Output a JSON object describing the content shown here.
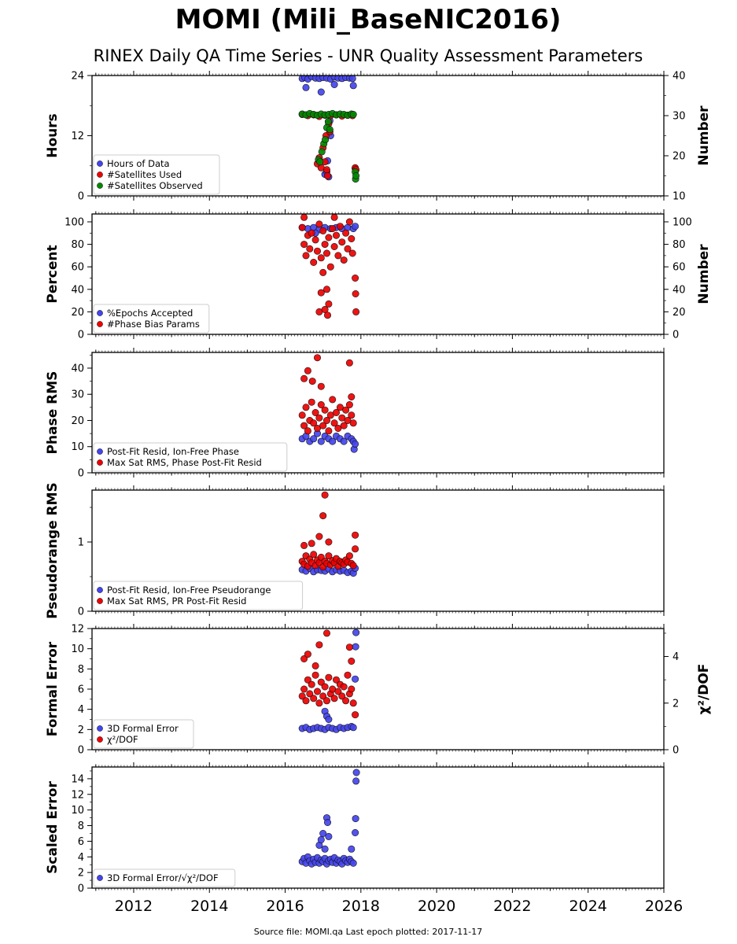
{
  "title": "MOMI (Mili_BaseNIC2016)",
  "subtitle": "RINEX Daily QA Time Series - UNR Quality Assessment Parameters",
  "footer": "Source file: MOMI.qa Last epoch plotted: 2017-11-17",
  "colors": {
    "blue": "#4444ee",
    "red": "#ee0000",
    "green": "#008800"
  },
  "chart_data": [
    {
      "type": "scatter",
      "ylabel": "Hours",
      "ylabel_right": "Number",
      "xlim": [
        2010.9,
        2026.0
      ],
      "ylim": [
        0,
        24
      ],
      "ylim_right": [
        10,
        40
      ],
      "yticks": [
        0,
        12,
        24
      ],
      "yticks_right": [
        10,
        20,
        30,
        40
      ],
      "legend": "lower-left",
      "series": [
        {
          "name": "Hours of Data",
          "color": "blue",
          "axis": "left",
          "x": [
            2016.45,
            2016.52,
            2016.6,
            2016.7,
            2016.8,
            2016.9,
            2017.0,
            2017.1,
            2017.2,
            2017.3,
            2017.4,
            2017.5,
            2017.6,
            2017.7,
            2017.78,
            2016.55,
            2016.95,
            2017.3,
            2017.8,
            2017.05,
            2017.1,
            2017.15,
            2017.12,
            2017.2,
            2017.18,
            2017.85
          ],
          "y": [
            23.4,
            23.6,
            23.3,
            23.8,
            23.5,
            23.4,
            23.6,
            23.5,
            23.3,
            23.7,
            23.5,
            23.4,
            23.6,
            23.5,
            23.4,
            21.6,
            20.7,
            22.2,
            22.0,
            4.3,
            4.8,
            3.8,
            7.0,
            12.0,
            15.0,
            5.5
          ]
        },
        {
          "name": "#Satellites Used",
          "color": "red",
          "axis": "right",
          "x": [
            2016.45,
            2016.6,
            2016.75,
            2016.9,
            2017.05,
            2017.2,
            2017.35,
            2017.5,
            2017.65,
            2017.78,
            2016.85,
            2016.9,
            2016.95,
            2017.0,
            2017.05,
            2017.08,
            2017.1,
            2017.12,
            2017.15,
            2017.18,
            2017.85,
            2017.87
          ],
          "y": [
            30.3,
            30.0,
            30.2,
            29.8,
            30.1,
            30.0,
            30.2,
            29.9,
            30.1,
            30.0,
            18.0,
            19.5,
            17.0,
            22.0,
            18.5,
            25.0,
            16.5,
            15.0,
            28.0,
            26.0,
            17.0,
            16.5
          ]
        },
        {
          "name": "#Satellites Observed",
          "color": "green",
          "axis": "right",
          "x": [
            2016.45,
            2016.55,
            2016.65,
            2016.75,
            2016.85,
            2016.95,
            2017.05,
            2017.15,
            2017.25,
            2017.35,
            2017.45,
            2017.55,
            2017.65,
            2017.75,
            2017.8,
            2016.88,
            2016.92,
            2016.97,
            2017.02,
            2017.06,
            2017.1,
            2017.14,
            2017.18,
            2017.86,
            2017.85,
            2017.87
          ],
          "y": [
            30.4,
            30.2,
            30.5,
            30.3,
            30.1,
            30.4,
            30.2,
            30.3,
            30.5,
            30.2,
            30.4,
            30.3,
            30.1,
            30.4,
            30.3,
            19.0,
            18.5,
            21.0,
            23.0,
            24.0,
            27.0,
            28.5,
            26.5,
            14.2,
            16.0,
            15.0
          ]
        }
      ]
    },
    {
      "type": "scatter",
      "ylabel": "Percent",
      "ylabel_right": "Number",
      "xlim": [
        2010.9,
        2026.0
      ],
      "ylim": [
        0,
        107
      ],
      "ylim_right": [
        0,
        107
      ],
      "yticks": [
        0,
        20,
        40,
        60,
        80,
        100
      ],
      "yticks_right": [
        0,
        20,
        40,
        60,
        80,
        100
      ],
      "legend": "lower-left",
      "series": [
        {
          "name": "%Epochs Accepted",
          "color": "blue",
          "axis": "left",
          "x": [
            2016.45,
            2016.6,
            2016.75,
            2016.9,
            2017.05,
            2017.2,
            2017.35,
            2017.5,
            2017.65,
            2017.8,
            2017.85,
            2016.8
          ],
          "y": [
            95,
            94,
            95,
            93,
            95,
            94,
            95,
            94,
            95,
            94,
            96,
            90
          ]
        },
        {
          "name": "#Phase Bias Params",
          "color": "red",
          "axis": "right",
          "x": [
            2016.45,
            2016.5,
            2016.55,
            2016.6,
            2016.65,
            2016.7,
            2016.75,
            2016.8,
            2016.85,
            2016.9,
            2016.95,
            2017.0,
            2017.05,
            2017.1,
            2017.15,
            2017.2,
            2017.25,
            2017.3,
            2017.35,
            2017.4,
            2017.45,
            2017.5,
            2017.55,
            2017.6,
            2017.65,
            2017.7,
            2017.75,
            2017.78,
            2016.9,
            2016.95,
            2017.0,
            2017.05,
            2017.1,
            2017.12,
            2017.15,
            2017.85,
            2017.86,
            2017.87,
            2016.5,
            2017.3
          ],
          "y": [
            95,
            80,
            70,
            88,
            76,
            90,
            64,
            84,
            74,
            98,
            68,
            92,
            80,
            72,
            86,
            60,
            94,
            78,
            88,
            70,
            96,
            82,
            66,
            90,
            76,
            100,
            85,
            72,
            20,
            37,
            55,
            22,
            40,
            17,
            27,
            50,
            36,
            20,
            104,
            104
          ]
        }
      ]
    },
    {
      "type": "scatter",
      "ylabel": "Phase RMS",
      "xlim": [
        2010.9,
        2026.0
      ],
      "ylim": [
        0,
        46
      ],
      "yticks": [
        0,
        10,
        20,
        30,
        40
      ],
      "legend": "lower-left",
      "series": [
        {
          "name": "Post-Fit Resid, Ion-Free Phase",
          "color": "blue",
          "x": [
            2016.45,
            2016.55,
            2016.65,
            2016.75,
            2016.85,
            2016.95,
            2017.05,
            2017.15,
            2017.25,
            2017.35,
            2017.45,
            2017.55,
            2017.65,
            2017.75,
            2017.8,
            2017.82,
            2017.85
          ],
          "y": [
            13,
            14,
            12,
            13,
            15,
            12,
            14,
            13,
            12,
            14,
            13,
            12,
            14,
            13,
            12,
            9,
            11
          ]
        },
        {
          "name": "Max Sat RMS, Phase Post-Fit Resid",
          "color": "red",
          "x": [
            2016.45,
            2016.5,
            2016.55,
            2016.6,
            2016.65,
            2016.7,
            2016.75,
            2016.8,
            2016.85,
            2016.9,
            2016.95,
            2017.0,
            2017.05,
            2017.1,
            2017.15,
            2017.2,
            2017.25,
            2017.3,
            2017.35,
            2017.4,
            2017.45,
            2017.5,
            2017.55,
            2017.6,
            2017.65,
            2017.7,
            2017.75,
            2017.8,
            2016.5,
            2016.6,
            2016.72,
            2016.85,
            2016.95,
            2017.7,
            2017.75
          ],
          "y": [
            22,
            18,
            25,
            16,
            20,
            27,
            19,
            23,
            17,
            21,
            26,
            18,
            24,
            20,
            16,
            22,
            28,
            19,
            23,
            17,
            25,
            21,
            18,
            24,
            20,
            26,
            22,
            19,
            36,
            39,
            35,
            44,
            33,
            42,
            29
          ]
        }
      ]
    },
    {
      "type": "scatter",
      "ylabel": "Pseudorange RMS",
      "xlim": [
        2010.9,
        2026.0
      ],
      "ylim": [
        0,
        1.75
      ],
      "yticks": [
        0,
        1
      ],
      "legend": "lower-left",
      "series": [
        {
          "name": "Post-Fit Resid, Ion-Free Pseudorange",
          "color": "blue",
          "x": [
            2016.45,
            2016.55,
            2016.65,
            2016.75,
            2016.85,
            2016.95,
            2017.05,
            2017.15,
            2017.25,
            2017.35,
            2017.45,
            2017.55,
            2017.65,
            2017.75,
            2017.8,
            2017.85
          ],
          "y": [
            0.6,
            0.58,
            0.62,
            0.57,
            0.6,
            0.59,
            0.58,
            0.61,
            0.57,
            0.6,
            0.58,
            0.59,
            0.56,
            0.58,
            0.55,
            0.62
          ]
        },
        {
          "name": "Max Sat RMS, PR Post-Fit Resid",
          "color": "red",
          "x": [
            2016.45,
            2016.5,
            2016.55,
            2016.6,
            2016.65,
            2016.7,
            2016.75,
            2016.8,
            2016.85,
            2016.9,
            2016.95,
            2017.0,
            2017.05,
            2017.1,
            2017.15,
            2017.2,
            2017.25,
            2017.3,
            2017.35,
            2017.4,
            2017.45,
            2017.5,
            2017.55,
            2017.6,
            2017.65,
            2017.7,
            2017.75,
            2017.8,
            2016.5,
            2016.7,
            2016.9,
            2017.0,
            2017.05,
            2017.15,
            2017.85,
            2017.85
          ],
          "y": [
            0.72,
            0.68,
            0.8,
            0.65,
            0.75,
            0.7,
            0.82,
            0.66,
            0.74,
            0.7,
            0.78,
            0.64,
            0.72,
            0.69,
            0.8,
            0.67,
            0.73,
            0.7,
            0.76,
            0.65,
            0.72,
            0.7,
            0.68,
            0.74,
            0.71,
            0.8,
            0.69,
            0.66,
            0.95,
            0.98,
            1.08,
            1.38,
            1.68,
            1.0,
            1.1,
            0.9
          ]
        }
      ]
    },
    {
      "type": "scatter",
      "ylabel": "Formal Error",
      "ylabel_right": "χ²/DOF",
      "xlim": [
        2010.9,
        2026.0
      ],
      "ylim": [
        0,
        12
      ],
      "ylim_right": [
        0,
        5.2
      ],
      "yticks": [
        0,
        2,
        4,
        6,
        8,
        10,
        12
      ],
      "yticks_right": [
        0,
        2,
        4
      ],
      "legend": "lower-left",
      "series": [
        {
          "name": "3D Formal Error",
          "color": "blue",
          "axis": "left",
          "x": [
            2016.45,
            2016.55,
            2016.65,
            2016.75,
            2016.85,
            2016.95,
            2017.05,
            2017.15,
            2017.25,
            2017.35,
            2017.45,
            2017.55,
            2017.65,
            2017.75,
            2017.8,
            2017.05,
            2017.1,
            2017.15,
            2017.85,
            2017.86,
            2017.87
          ],
          "y": [
            2.1,
            2.2,
            2.0,
            2.1,
            2.2,
            2.1,
            2.0,
            2.2,
            2.1,
            2.0,
            2.2,
            2.1,
            2.2,
            2.3,
            2.2,
            3.8,
            3.3,
            3.0,
            7.0,
            10.2,
            11.6
          ]
        },
        {
          "name": "χ²/DOF",
          "color": "red",
          "axis": "right",
          "x": [
            2016.45,
            2016.5,
            2016.55,
            2016.6,
            2016.65,
            2016.7,
            2016.75,
            2016.8,
            2016.85,
            2016.9,
            2016.95,
            2017.0,
            2017.05,
            2017.1,
            2017.15,
            2017.2,
            2017.25,
            2017.3,
            2017.35,
            2017.4,
            2017.45,
            2017.5,
            2017.55,
            2017.6,
            2017.65,
            2017.7,
            2017.75,
            2017.8,
            2016.5,
            2016.6,
            2016.8,
            2016.9,
            2017.1,
            2017.7,
            2017.75,
            2017.85
          ],
          "y": [
            2.3,
            2.6,
            2.1,
            3.0,
            2.4,
            2.8,
            2.2,
            3.2,
            2.5,
            2.0,
            2.9,
            2.3,
            2.7,
            2.1,
            3.1,
            2.4,
            2.6,
            2.2,
            3.0,
            2.5,
            2.8,
            2.3,
            2.7,
            2.1,
            3.2,
            2.4,
            2.6,
            2.0,
            3.9,
            4.1,
            3.6,
            4.5,
            5.0,
            4.4,
            3.8,
            1.5
          ]
        }
      ]
    },
    {
      "type": "scatter",
      "ylabel": "Scaled Error",
      "xlim": [
        2010.9,
        2026.0
      ],
      "ylim": [
        0,
        15.5
      ],
      "yticks": [
        0,
        2,
        4,
        6,
        8,
        10,
        12,
        14
      ],
      "xticks": [
        2012,
        2014,
        2016,
        2018,
        2020,
        2022,
        2024,
        2026
      ],
      "legend": "lower-left",
      "series": [
        {
          "name": "3D Formal Error/√χ²/DOF",
          "color": "blue",
          "x": [
            2016.45,
            2016.5,
            2016.55,
            2016.6,
            2016.65,
            2016.7,
            2016.75,
            2016.8,
            2016.85,
            2016.9,
            2016.95,
            2017.0,
            2017.05,
            2017.1,
            2017.15,
            2017.2,
            2017.25,
            2017.3,
            2017.35,
            2017.4,
            2017.45,
            2017.5,
            2017.55,
            2017.6,
            2017.65,
            2017.7,
            2017.75,
            2017.8,
            2016.9,
            2016.95,
            2017.0,
            2017.05,
            2017.1,
            2017.12,
            2017.15,
            2017.75,
            2017.85,
            2017.86,
            2017.87,
            2017.88
          ],
          "y": [
            3.4,
            3.8,
            3.2,
            4.0,
            3.5,
            3.1,
            3.7,
            3.3,
            3.9,
            3.2,
            3.6,
            3.4,
            3.8,
            3.1,
            3.5,
            3.7,
            3.3,
            3.9,
            3.2,
            3.6,
            3.4,
            3.1,
            3.8,
            3.5,
            3.3,
            3.7,
            3.4,
            3.2,
            5.5,
            6.2,
            7.0,
            5.0,
            9.0,
            8.4,
            6.6,
            5.0,
            7.1,
            8.9,
            13.7,
            14.8
          ]
        }
      ]
    }
  ]
}
